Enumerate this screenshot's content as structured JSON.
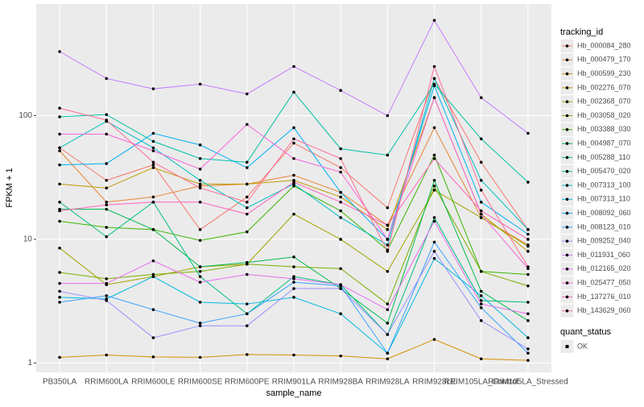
{
  "chart_data": {
    "type": "line",
    "x_label": "sample_name",
    "y_label": "FPKM + 1",
    "log_y": true,
    "grid": true,
    "legend_position": "right",
    "legend_title": "tracking_id",
    "shape_legend": {
      "title": "quant_status",
      "labels": [
        "OK"
      ]
    },
    "categories": [
      "PB350LA",
      "RRIM600LA",
      "RRIM600LE",
      "RRIM600SE",
      "RRIM600PE",
      "RRIM901LA",
      "RRIM928BA",
      "RRIM928LA",
      "RRIM928LE",
      "RRIM105LA_Control",
      "RRIM105LA_Stressed"
    ],
    "ylim": [
      0.84,
      800
    ],
    "yticks": [
      1,
      10,
      100
    ],
    "series": [
      {
        "name": "Hb_000084_280",
        "color": "#F8766D",
        "values": [
          55,
          30,
          40,
          12,
          22,
          60,
          38,
          18,
          200,
          42,
          12
        ]
      },
      {
        "name": "Hb_000479_170",
        "color": "#EA8331",
        "values": [
          52,
          20,
          22,
          27,
          28,
          33,
          24,
          13,
          80,
          15,
          9
        ]
      },
      {
        "name": "Hb_000599_230",
        "color": "#D89000",
        "values": [
          1.11,
          1.16,
          1.12,
          1.11,
          1.17,
          1.16,
          1.14,
          1.08,
          1.55,
          1.08,
          1.05
        ]
      },
      {
        "name": "Hb_002276_070",
        "color": "#C09B00",
        "values": [
          28,
          26,
          38,
          28,
          28,
          30,
          22,
          12,
          140,
          16,
          8
        ]
      },
      {
        "name": "Hb_002368_070",
        "color": "#A3A500",
        "values": [
          8.5,
          4.3,
          5,
          6,
          6.3,
          16,
          10,
          5.5,
          25,
          15,
          8.8
        ]
      },
      {
        "name": "Hb_003058_020",
        "color": "#7CAE00",
        "values": [
          5.4,
          4.8,
          5.2,
          5.5,
          6.3,
          6,
          5.8,
          3,
          27,
          5.5,
          4.2
        ]
      },
      {
        "name": "Hb_003388_030",
        "color": "#39B600",
        "values": [
          14,
          12.5,
          12,
          9.8,
          11.5,
          27,
          17,
          8.2,
          48,
          5.5,
          5.2
        ]
      },
      {
        "name": "Hb_004987_070",
        "color": "#00BB4E",
        "values": [
          17.5,
          17.5,
          12,
          6,
          6.5,
          7.2,
          4,
          2.1,
          30,
          3.8,
          2.2
        ]
      },
      {
        "name": "Hb_005288_110",
        "color": "#00BF7D",
        "values": [
          20,
          10.5,
          20,
          5,
          2.5,
          5,
          4.3,
          1.7,
          15,
          3.2,
          3.1
        ]
      },
      {
        "name": "Hb_005470_020",
        "color": "#00C1A3",
        "values": [
          98,
          102,
          62,
          45,
          42,
          155,
          54,
          48,
          180,
          65,
          29
        ]
      },
      {
        "name": "Hb_007313_100",
        "color": "#00BFC4",
        "values": [
          55,
          90,
          55,
          30,
          18,
          28,
          15,
          9,
          200,
          30,
          12
        ]
      },
      {
        "name": "Hb_007313_110",
        "color": "#00BAE0",
        "values": [
          3.4,
          3.3,
          5,
          3.1,
          3,
          3.4,
          2.5,
          1.2,
          7,
          3.5,
          1.6
        ]
      },
      {
        "name": "Hb_008092_060",
        "color": "#00B0F6",
        "values": [
          40,
          41,
          72,
          58,
          38,
          80,
          24,
          10,
          175,
          20,
          11
        ]
      },
      {
        "name": "Hb_008123_010",
        "color": "#35A2FF",
        "values": [
          3.1,
          3.5,
          2.7,
          2.1,
          2.5,
          4.5,
          4.2,
          1.2,
          9.5,
          2.8,
          1.2
        ]
      },
      {
        "name": "Hb_009252_040",
        "color": "#9590FF",
        "values": [
          3.8,
          3.2,
          1.6,
          2,
          2,
          4,
          4,
          1.7,
          8,
          2.2,
          1.3
        ]
      },
      {
        "name": "Hb_011931_060",
        "color": "#C77CFF",
        "values": [
          330,
          200,
          165,
          180,
          150,
          250,
          160,
          100,
          590,
          140,
          72
        ]
      },
      {
        "name": "Hb_012165_020",
        "color": "#E76BF3",
        "values": [
          4.4,
          4.4,
          6.7,
          4.5,
          5.2,
          4.8,
          4.3,
          2.7,
          14,
          3,
          2.5
        ]
      },
      {
        "name": "Hb_025477_050",
        "color": "#FA62DB",
        "values": [
          71,
          71,
          52,
          37,
          85,
          45,
          35,
          10,
          140,
          16,
          5.8
        ]
      },
      {
        "name": "Hb_137276_010",
        "color": "#FF62BC",
        "values": [
          17,
          19,
          20,
          20,
          16,
          29,
          20,
          13,
          45,
          17,
          10
        ]
      },
      {
        "name": "Hb_143629_060",
        "color": "#FF6C91",
        "values": [
          115,
          92,
          42,
          26,
          20,
          65,
          45,
          8,
          250,
          25,
          6
        ]
      }
    ]
  }
}
